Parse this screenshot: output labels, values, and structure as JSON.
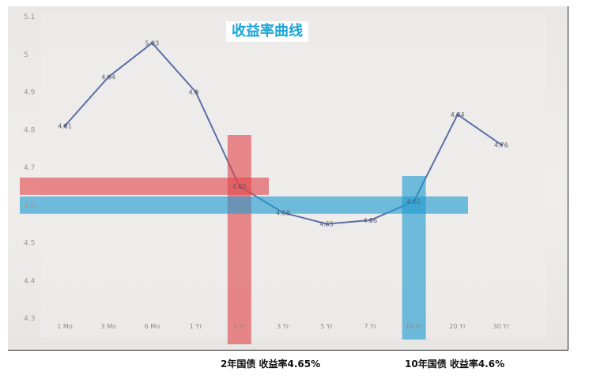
{
  "header": {
    "title": "收益率曲线"
  },
  "captions": {
    "two_year": "2年国债 收益率4.65%",
    "ten_year": "10年国债 收益率4.6%"
  },
  "chart_data": {
    "type": "line",
    "title": "收益率曲线",
    "xlabel": "",
    "ylabel": "",
    "categories": [
      "1 Mo",
      "3 Mo",
      "6 Mo",
      "1 Yr",
      "2 Yr",
      "3 Yr",
      "5 Yr",
      "7 Yr",
      "10 Yr",
      "20 Yr",
      "30 Yr"
    ],
    "series": [
      {
        "values": [
          4.81,
          4.94,
          5.03,
          4.9,
          4.65,
          4.58,
          4.55,
          4.56,
          4.61,
          4.84,
          4.76
        ],
        "labels": [
          "4.81",
          "4.94",
          "5.03",
          "4.9",
          "4.65",
          "4.58",
          "4.55",
          "4.56",
          "4.61",
          "4.84",
          "4.76"
        ],
        "color": "#5b6fa8"
      }
    ],
    "yticks": [
      "5.1",
      "5",
      "4.9",
      "4.8",
      "4.7",
      "4.6",
      "4.5",
      "4.4",
      "4.3"
    ],
    "ylim": [
      4.3,
      5.1
    ],
    "grid": false,
    "highlights": [
      {
        "category": "2 Yr",
        "value": 4.65,
        "color": "#e0474c"
      },
      {
        "category": "10 Yr",
        "value": 4.6,
        "color": "#1f9bd1"
      }
    ]
  }
}
